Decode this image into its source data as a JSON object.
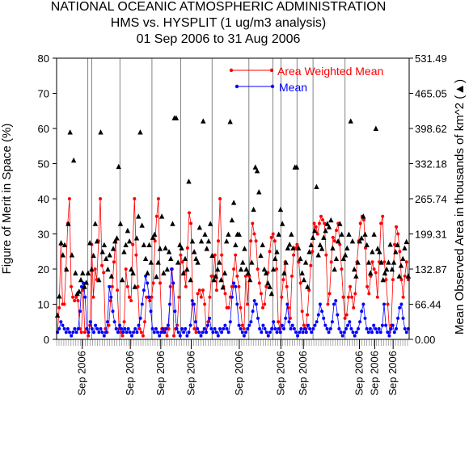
{
  "chart_data": {
    "type": "line",
    "title": [
      "NATIONAL OCEANIC ATMOSPHERIC ADMINISTRATION",
      "HMS vs. HYSPLIT (1 ug/m3 analysis)",
      "01 Sep 2006 to 31 Aug 2006"
    ],
    "ylabel": "Figure of Merit in Space (%)",
    "y2label": "Mean Observed Area in thousands of km^2 (▲)",
    "ylim": [
      0,
      80
    ],
    "yticks": [
      0,
      10,
      20,
      30,
      40,
      50,
      60,
      70,
      80
    ],
    "y2lim": [
      0,
      531.49
    ],
    "y2ticks": [
      "0.00",
      "66.44",
      "132.87",
      "199.31",
      "265.74",
      "332.18",
      "398.62",
      "465.05",
      "531.49"
    ],
    "xtick_labels": [
      "Sep 2006",
      "Sep 2006",
      "Sep 2006",
      "Sep 2006",
      "Sep 2006",
      "Sep 2006",
      "Sep 2006",
      "Sep 2006",
      "Sep 2006",
      "Sep 2006"
    ],
    "xtick_days": [
      32,
      92,
      130,
      168,
      228,
      280,
      308,
      378,
      397,
      420
    ],
    "divider_days": [
      39,
      44,
      79,
      119,
      155,
      194,
      240,
      270,
      280,
      300,
      320,
      360
    ],
    "x_count": 440,
    "legend_position": "top-right",
    "series": [
      {
        "name": "Area Weighted Mean",
        "color": "#ff0000",
        "values": [
          2,
          9,
          27,
          10,
          10,
          20,
          33,
          40,
          15,
          12,
          11,
          12,
          11,
          3,
          2,
          14,
          2,
          3,
          1,
          4,
          27,
          12,
          20,
          17,
          28,
          40,
          21,
          19,
          3,
          2,
          4,
          11,
          15,
          22,
          28,
          14,
          3,
          2,
          1,
          5,
          20,
          15,
          12,
          11,
          27,
          40,
          24,
          15,
          3,
          2,
          1,
          5,
          12,
          12,
          11,
          12,
          16,
          28,
          35,
          40,
          16,
          3,
          2,
          3,
          1,
          3,
          15,
          20,
          1,
          3,
          4,
          12,
          24,
          22,
          19,
          15,
          26,
          36,
          33,
          10,
          3,
          2,
          13,
          14,
          12,
          14,
          10,
          2,
          5,
          12,
          18,
          18,
          24,
          14,
          28,
          40,
          24,
          15,
          13,
          9,
          9,
          12,
          15,
          20,
          24,
          18,
          15,
          9,
          4,
          3,
          18,
          10,
          18,
          28,
          33,
          30,
          28,
          20,
          16,
          13,
          9,
          10,
          15,
          19,
          25,
          29,
          30,
          28,
          20,
          5,
          3,
          12,
          17,
          22,
          15,
          9,
          6,
          18,
          24,
          26,
          27,
          22,
          16,
          8,
          4,
          3,
          7,
          14,
          21,
          25,
          33,
          32,
          30,
          33,
          35,
          34,
          33,
          24,
          10,
          13,
          22,
          29,
          28,
          31,
          33,
          27,
          20,
          12,
          6,
          7,
          12,
          15,
          12,
          9,
          13,
          22,
          28,
          33,
          35,
          34,
          26,
          15,
          13,
          18,
          22,
          20,
          19,
          12,
          22,
          33,
          35,
          22,
          17,
          10,
          2,
          4,
          17,
          27,
          32,
          30,
          25,
          17,
          12,
          18,
          22,
          17
        ],
        "marker": "circle"
      },
      {
        "name": "Mean",
        "color": "#0000ff",
        "values": [
          2,
          3,
          5,
          4,
          3,
          2,
          3,
          2,
          1,
          2,
          3,
          2,
          3,
          8,
          15,
          16,
          12,
          3,
          2,
          5,
          3,
          2,
          4,
          3,
          2,
          3,
          2,
          1,
          2,
          5,
          15,
          12,
          8,
          5,
          3,
          2,
          4,
          3,
          2,
          3,
          2,
          3,
          2,
          1,
          2,
          3,
          2,
          4,
          6,
          10,
          14,
          18,
          16,
          12,
          8,
          3,
          2,
          3,
          2,
          1,
          2,
          3,
          2,
          3,
          4,
          10,
          20,
          16,
          8,
          3,
          2,
          1,
          3,
          2,
          3,
          1,
          2,
          4,
          11,
          10,
          5,
          3,
          2,
          1,
          2,
          3,
          2,
          4,
          6,
          3,
          2,
          3,
          2,
          1,
          3,
          2,
          3,
          4,
          3,
          2,
          5,
          12,
          16,
          15,
          10,
          4,
          3,
          2,
          1,
          2,
          3,
          4,
          5,
          8,
          11,
          10,
          6,
          3,
          2,
          4,
          3,
          2,
          1,
          2,
          3,
          5,
          3,
          2,
          3,
          2,
          4,
          3,
          6,
          10,
          5,
          3,
          4,
          3,
          2,
          1,
          2,
          3,
          2,
          3,
          2,
          4,
          3,
          2,
          3,
          4,
          5,
          7,
          10,
          8,
          6,
          4,
          3,
          2,
          3,
          5,
          10,
          11,
          7,
          3,
          2,
          1,
          2,
          3,
          4,
          5,
          3,
          2,
          1,
          2,
          3,
          5,
          8,
          10,
          6,
          3,
          2,
          3,
          2,
          4,
          3,
          2,
          3,
          2,
          4,
          10,
          4,
          2,
          1,
          3,
          4,
          2,
          3,
          6,
          9,
          10,
          6,
          3,
          2,
          3
        ],
        "marker": "circle"
      },
      {
        "name": "Mean Observed Area",
        "color": "#000000",
        "values": [
          46,
          82,
          183,
          160,
          179,
          133,
          219,
          392,
          160,
          339,
          126,
          87,
          91,
          113,
          126,
          100,
          108,
          126,
          183,
          133,
          159,
          219,
          186,
          113,
          392,
          166,
          179,
          153,
          133,
          160,
          120,
          172,
          186,
          192,
          327,
          219,
          113,
          166,
          179,
          206,
          186,
          133,
          126,
          100,
          192,
          233,
          392,
          216,
          179,
          153,
          126,
          179,
          146,
          193,
          199,
          119,
          146,
          172,
          233,
          126,
          173,
          133,
          166,
          153,
          219,
          419,
          419,
          146,
          179,
          173,
          126,
          153,
          133,
          299,
          113,
          186,
          166,
          153,
          146,
          212,
          186,
          413,
          199,
          172,
          186,
          219,
          159,
          113,
          120,
          133,
          146,
          113,
          99,
          126,
          186,
          199,
          412,
          226,
          259,
          179,
          199,
          199,
          133,
          146,
          172,
          133,
          126,
          113,
          146,
          246,
          326,
          319,
          279,
          159,
          179,
          133,
          126,
          107,
          100,
          87,
          133,
          153,
          166,
          199,
          246,
          219,
          126,
          146,
          173,
          180,
          199,
          173,
          326,
          326,
          173,
          153,
          126,
          113,
          146,
          100,
          166,
          179,
          193,
          206,
          289,
          160,
          179,
          172,
          193,
          206,
          219,
          213,
          226,
          173,
          133,
          153,
          186,
          219,
          199,
          153,
          160,
          173,
          199,
          413,
          186,
          133,
          120,
          146,
          186,
          192,
          233,
          199,
          179,
          146,
          126,
          166,
          199,
          399,
          172,
          166,
          146,
          113,
          126,
          133,
          146,
          180,
          133,
          146,
          166,
          179,
          120,
          140,
          153,
          173,
          185,
          120
        ]
      }
    ]
  }
}
